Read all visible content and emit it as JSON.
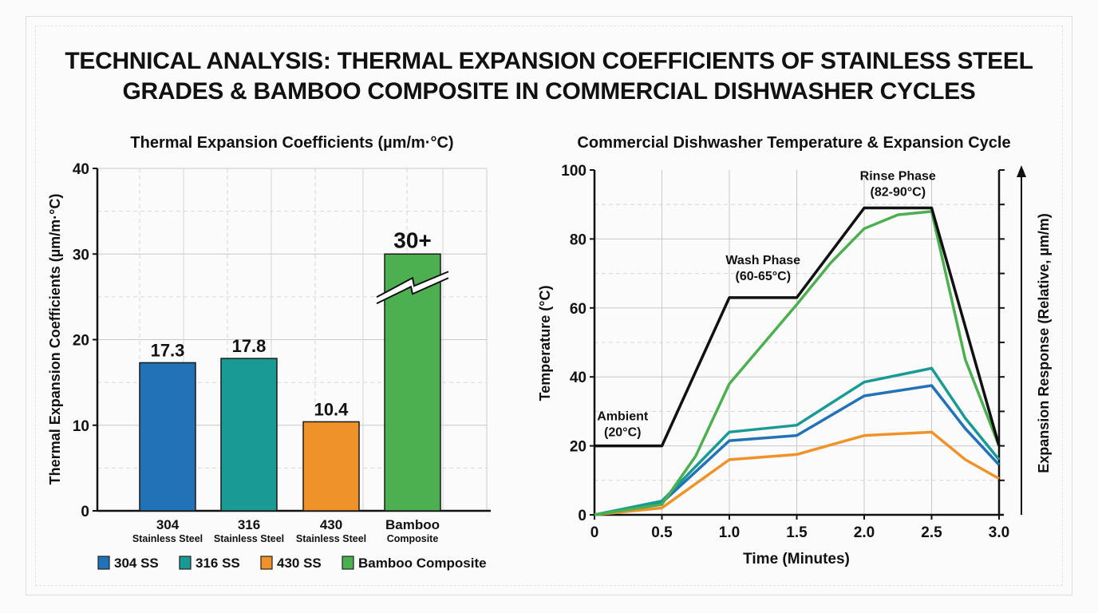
{
  "title": "TECHNICAL ANALYSIS: THERMAL EXPANSION COEFFICIENTS OF STAINLESS STEEL GRADES & BAMBOO COMPOSITE IN COMMERCIAL DISHWASHER CYCLES",
  "title_lines": [
    "TECHNICAL ANALYSIS: THERMAL EXPANSION COEFFICIENTS OF STAINLESS STEEL",
    "GRADES & BAMBOO COMPOSITE IN COMMERCIAL DISHWASHER CYCLES"
  ],
  "chart_data": [
    {
      "type": "bar",
      "title": "Thermal Expansion Coefficients (µm/m·°C)",
      "xlabel": "",
      "ylabel": "Thermal Expansion Coefficients (µm/m·°C)",
      "ylim": [
        0,
        40
      ],
      "yticks": [
        0,
        10,
        20,
        30,
        40
      ],
      "grid": true,
      "categories": [
        "304",
        "316",
        "430",
        "Bamboo"
      ],
      "category_sublabels": [
        "Stainless Steel",
        "Stainless Steel",
        "Stainless Steel",
        "Composite"
      ],
      "values": [
        17.3,
        17.8,
        10.4,
        30
      ],
      "data_labels": [
        "17.3",
        "17.8",
        "10.4",
        "30+"
      ],
      "axis_break_on": "Bamboo",
      "colors": [
        "#2272b8",
        "#1a9a94",
        "#f0922a",
        "#4caf50"
      ],
      "legend": [
        "304 SS",
        "316 SS",
        "430 SS",
        "Bamboo Composite"
      ],
      "legend_placement": "bottom"
    },
    {
      "type": "line",
      "title": "Commercial Dishwasher Temperature & Expansion Cycle",
      "xlabel": "Time (Minutes)",
      "ylabel": "Temperature (°C)",
      "ylabel_right": "Expansion Response (Relative, µm/m)",
      "xlim": [
        0,
        3.0
      ],
      "ylim": [
        0,
        100
      ],
      "xticks": [
        "0",
        "0.5",
        "1.0",
        "1.5",
        "2.0",
        "2.5",
        "3.0"
      ],
      "yticks": [
        0,
        20,
        40,
        60,
        80,
        100
      ],
      "grid": true,
      "series": [
        {
          "key": "temperature",
          "color": "#111111",
          "x": [
            0,
            0.5,
            1.0,
            1.5,
            2.0,
            2.5,
            3.0
          ],
          "y": [
            20,
            20,
            63,
            63,
            89,
            89,
            20
          ]
        },
        {
          "key": "bamboo",
          "color": "#4caf50",
          "x": [
            0,
            0.5,
            0.75,
            1.0,
            1.5,
            1.75,
            2.0,
            2.25,
            2.5,
            2.75,
            3.0
          ],
          "y": [
            0,
            3,
            17,
            38,
            61,
            73,
            83,
            87,
            88,
            45,
            20
          ]
        },
        {
          "key": "316",
          "color": "#1a9a94",
          "x": [
            0,
            0.5,
            1.0,
            1.5,
            2.0,
            2.5,
            2.75,
            3.0
          ],
          "y": [
            0,
            4,
            24,
            26,
            38.5,
            42.5,
            28,
            16
          ]
        },
        {
          "key": "304",
          "color": "#2272b8",
          "x": [
            0,
            0.5,
            1.0,
            1.5,
            2.0,
            2.5,
            2.75,
            3.0
          ],
          "y": [
            0,
            3.5,
            21.5,
            23,
            34.5,
            37.5,
            25,
            14.5
          ]
        },
        {
          "key": "430",
          "color": "#f0922a",
          "x": [
            0,
            0.5,
            0.75,
            1.0,
            1.5,
            2.0,
            2.5,
            2.75,
            3.0
          ],
          "y": [
            0,
            2,
            9,
            16,
            17.5,
            23,
            24,
            16,
            10.5
          ]
        }
      ],
      "annotations": [
        {
          "lines": [
            "Ambient",
            "(20°C)"
          ],
          "x": 0.25,
          "y": 20
        },
        {
          "lines": [
            "Wash Phase",
            "(60-65°C)"
          ],
          "x": 1.25,
          "y": 63
        },
        {
          "lines": [
            "Rinse Phase",
            "(82-90°C)"
          ],
          "x": 2.25,
          "y": 89
        }
      ]
    }
  ]
}
